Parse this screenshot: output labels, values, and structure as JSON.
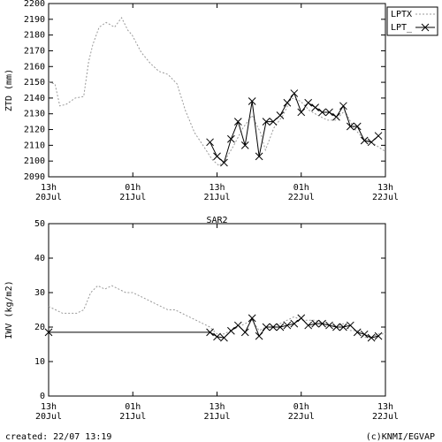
{
  "chart_data": [
    {
      "type": "line",
      "ylabel": "ZTD (mm)",
      "xlim": [
        0,
        48
      ],
      "xticks": [
        {
          "value": 0,
          "label": "13h\n20Jul"
        },
        {
          "value": 12,
          "label": "01h\n21Jul"
        },
        {
          "value": 24,
          "label": "13h\n21Jul"
        },
        {
          "value": 36,
          "label": "01h\n22Jul"
        },
        {
          "value": 48,
          "label": "13h\n22Jul"
        }
      ],
      "ylim": [
        2090,
        2200
      ],
      "yticks": [
        2090,
        2100,
        2110,
        2120,
        2130,
        2140,
        2150,
        2160,
        2170,
        2180,
        2190,
        2200
      ],
      "legend": "outside right",
      "series": [
        {
          "name": "LPTX",
          "color": "#999999",
          "style": "dotted",
          "x": [
            0,
            0.9,
            1.6,
            2.5,
            3.8,
            5.0,
            5.7,
            6.3,
            7.2,
            8.2,
            9.4,
            10.4,
            11.3,
            11.9,
            13.2,
            14.5,
            15.7,
            17.0,
            18.3,
            19.5,
            20.8,
            22.0,
            23.3,
            24.3,
            25.2,
            26.4,
            27.7,
            29.0,
            30.2,
            30.9,
            32.1,
            33.4,
            34.6,
            35.9,
            37.2,
            38.4,
            39.7,
            40.9,
            42.2,
            43.5,
            44.7,
            46.0,
            48.0
          ],
          "values": [
            2150,
            2149,
            2135,
            2136,
            2140,
            2141,
            2163,
            2174,
            2185,
            2188,
            2185,
            2191,
            2183,
            2180,
            2169,
            2162,
            2157,
            2155,
            2149,
            2132,
            2118,
            2110,
            2101,
            2097,
            2101,
            2110,
            2121,
            2129,
            2118,
            2107,
            2121,
            2129,
            2140,
            2138,
            2132,
            2129,
            2126,
            2126,
            2132,
            2121,
            2115,
            2112,
            2106
          ]
        },
        {
          "name": "LPT_",
          "color": "#000000",
          "style": "solid",
          "marker": "x",
          "x": [
            23,
            24,
            25,
            26,
            27,
            28,
            29,
            30,
            31,
            32,
            33,
            34,
            35,
            36,
            37,
            38,
            39,
            40,
            41,
            42,
            43,
            44,
            45,
            46,
            47
          ],
          "values": [
            2112,
            2103,
            2099,
            2114,
            2125,
            2110,
            2138,
            2103,
            2125,
            2125,
            2129,
            2137,
            2143,
            2131,
            2137,
            2134,
            2131,
            2131,
            2128,
            2135,
            2122,
            2122,
            2113,
            2112,
            2116
          ]
        }
      ]
    },
    {
      "type": "line",
      "title": "SAR2",
      "ylabel": "IWV (kg/m2)",
      "xlim": [
        0,
        48
      ],
      "xticks": [
        {
          "value": 0,
          "label": "13h\n20Jul"
        },
        {
          "value": 12,
          "label": "01h\n21Jul"
        },
        {
          "value": 24,
          "label": "13h\n21Jul"
        },
        {
          "value": 36,
          "label": "01h\n22Jul"
        },
        {
          "value": 48,
          "label": "13h\n22Jul"
        }
      ],
      "ylim": [
        0,
        50
      ],
      "yticks": [
        0,
        10,
        20,
        30,
        40,
        50
      ],
      "series": [
        {
          "name": "LPTX",
          "color": "#999999",
          "style": "dotted",
          "x": [
            0,
            1,
            2,
            3,
            4,
            5,
            6,
            7,
            8,
            9,
            10,
            11,
            12,
            13,
            14,
            15,
            16,
            17,
            18,
            19,
            20,
            21,
            22,
            23,
            24,
            25,
            26,
            27,
            28,
            29,
            30,
            31,
            32,
            33,
            34,
            35,
            36,
            37,
            38,
            39,
            40,
            41,
            42,
            43,
            44,
            45,
            46,
            47,
            48
          ],
          "values": [
            26,
            25,
            24,
            24,
            24,
            25,
            30,
            32,
            31,
            32,
            31,
            30,
            30,
            29,
            28,
            27,
            26,
            25,
            25,
            24,
            23,
            22,
            21,
            20,
            18,
            18,
            19,
            20,
            21,
            22,
            19,
            20,
            20,
            21,
            22,
            23,
            22,
            22,
            22,
            21,
            21,
            20,
            21,
            19,
            19,
            17,
            17,
            18,
            18
          ]
        },
        {
          "name": "LPT_",
          "color": "#000000",
          "style": "solid",
          "marker": "x",
          "x": [
            0,
            23,
            24,
            25,
            26,
            27,
            28,
            29,
            30,
            31,
            32,
            33,
            34,
            35,
            36,
            37,
            38,
            39,
            40,
            41,
            42,
            43,
            44,
            45,
            46,
            47
          ],
          "values": [
            18.5,
            18.5,
            17.2,
            16.9,
            18.9,
            20.5,
            18.5,
            22.6,
            17.4,
            20,
            20,
            20,
            20.5,
            21,
            22.6,
            20.5,
            21,
            21,
            20.5,
            20,
            20,
            20.5,
            18.5,
            17.9,
            16.9,
            17.4
          ]
        }
      ]
    }
  ],
  "footer": {
    "left": "created: 22/07 13:19",
    "right": "(c)KNMI/EGVAP"
  }
}
